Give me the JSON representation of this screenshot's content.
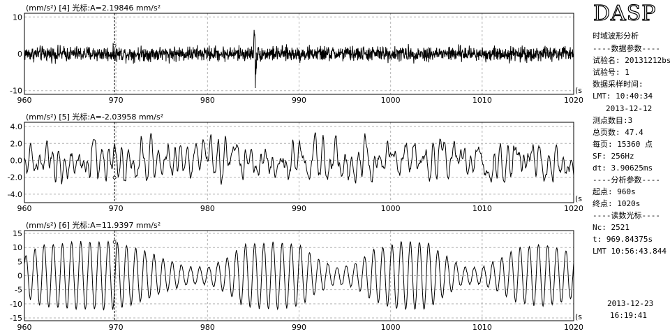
{
  "colors": {
    "background": "#ffffff",
    "trace": "#000000",
    "grid": "#b4b4b4",
    "cursor": "#000000"
  },
  "chart_data": [
    {
      "type": "line",
      "header_unit": "(mm/s²)",
      "header": "[4] 光标:A=2.19846 mm/s²",
      "x_unit": "(s)",
      "xlim": [
        960,
        1020
      ],
      "ylim": [
        -11,
        11
      ],
      "x_ticks": [
        "960",
        "970",
        "980",
        "990",
        "1000",
        "1010",
        "1020"
      ],
      "y_ticks": [
        "10",
        "0",
        "-10"
      ],
      "y_tick_values": [
        10,
        0,
        -10
      ],
      "cursor_x": 969.84375,
      "cursor_y": 2.19846,
      "grid": true,
      "signal": {
        "kind": "broadband noise",
        "rms": 1.0,
        "peak_x": 985.2,
        "peak_max": 8.5,
        "peak_min": -5.0,
        "x_step": 0.03125
      }
    },
    {
      "type": "line",
      "header_unit": "(mm/s²)",
      "header": "[5] 光标:A=-2.03958 mm/s²",
      "x_unit": "(s)",
      "xlim": [
        960,
        1020
      ],
      "ylim": [
        -5,
        4.5
      ],
      "x_ticks": [
        "960",
        "970",
        "980",
        "990",
        "1000",
        "1010",
        "1020"
      ],
      "y_ticks": [
        "4.0",
        "2.0",
        "0.0",
        "-2.0",
        "-4.0"
      ],
      "y_tick_values": [
        4,
        2,
        0,
        -2,
        -4
      ],
      "cursor_x": 969.84375,
      "cursor_y": -2.03958,
      "grid": true,
      "signal": {
        "kind": "narrowband random",
        "rms": 1.2,
        "max": 3.5,
        "min": -4.0,
        "x_step": 0.0625
      }
    },
    {
      "type": "line",
      "header_unit": "(mm/s²)",
      "header": "[6] 光标:A=11.9397 mm/s²",
      "x_unit": "(s)",
      "xlim": [
        960,
        1020
      ],
      "ylim": [
        -16,
        16
      ],
      "x_ticks": [
        "960",
        "970",
        "980",
        "990",
        "1000",
        "1010",
        "1020"
      ],
      "y_ticks": [
        "15",
        "10",
        "5",
        "0",
        "-5",
        "-10",
        "-15"
      ],
      "y_tick_values": [
        15,
        10,
        5,
        0,
        -5,
        -10,
        -15
      ],
      "cursor_x": 969.84375,
      "cursor_y": 11.9397,
      "grid": true,
      "signal": {
        "kind": "beating sinusoid",
        "frequency_hz": 1.0,
        "envelope": [
          [
            960,
            7
          ],
          [
            962,
            11
          ],
          [
            966,
            12
          ],
          [
            970,
            12
          ],
          [
            973,
            9
          ],
          [
            976,
            5
          ],
          [
            978,
            3
          ],
          [
            980,
            3
          ],
          [
            982,
            6
          ],
          [
            984,
            11
          ],
          [
            987,
            12
          ],
          [
            990,
            11
          ],
          [
            992,
            6
          ],
          [
            994,
            3
          ],
          [
            996,
            4
          ],
          [
            998,
            9
          ],
          [
            1001,
            12
          ],
          [
            1004,
            12
          ],
          [
            1006,
            7
          ],
          [
            1008,
            3
          ],
          [
            1010,
            3
          ],
          [
            1012,
            6
          ],
          [
            1014,
            10
          ],
          [
            1017,
            11
          ],
          [
            1020,
            8
          ]
        ]
      }
    }
  ],
  "panel": {
    "logo": "DASP",
    "title": "时域波形分析",
    "data_params_header": "----数据参数----",
    "test_name": "试验名: 20131212bs",
    "test_no": "试验号: 1",
    "sample_time_label": "数据采样时间:",
    "lmt": "LMT: 10:40:34",
    "date": "2013-12-12",
    "points": "测点数目:3",
    "total_pages": "总页数: 47.4",
    "per_page": "每页: 15360 点",
    "sf": "SF: 256Hz",
    "dt": "dt: 3.90625ms",
    "analysis_header": "----分析参数----",
    "start": "起点: 960s",
    "end": "终点: 1020s",
    "cursor_header": "----读数光标----",
    "nc": "Nc: 2521",
    "t": "t: 969.84375s",
    "lmt_cursor": "LMT 10:56:43.844",
    "footer_date": "2013-12-23",
    "footer_time": "16:19:41"
  }
}
